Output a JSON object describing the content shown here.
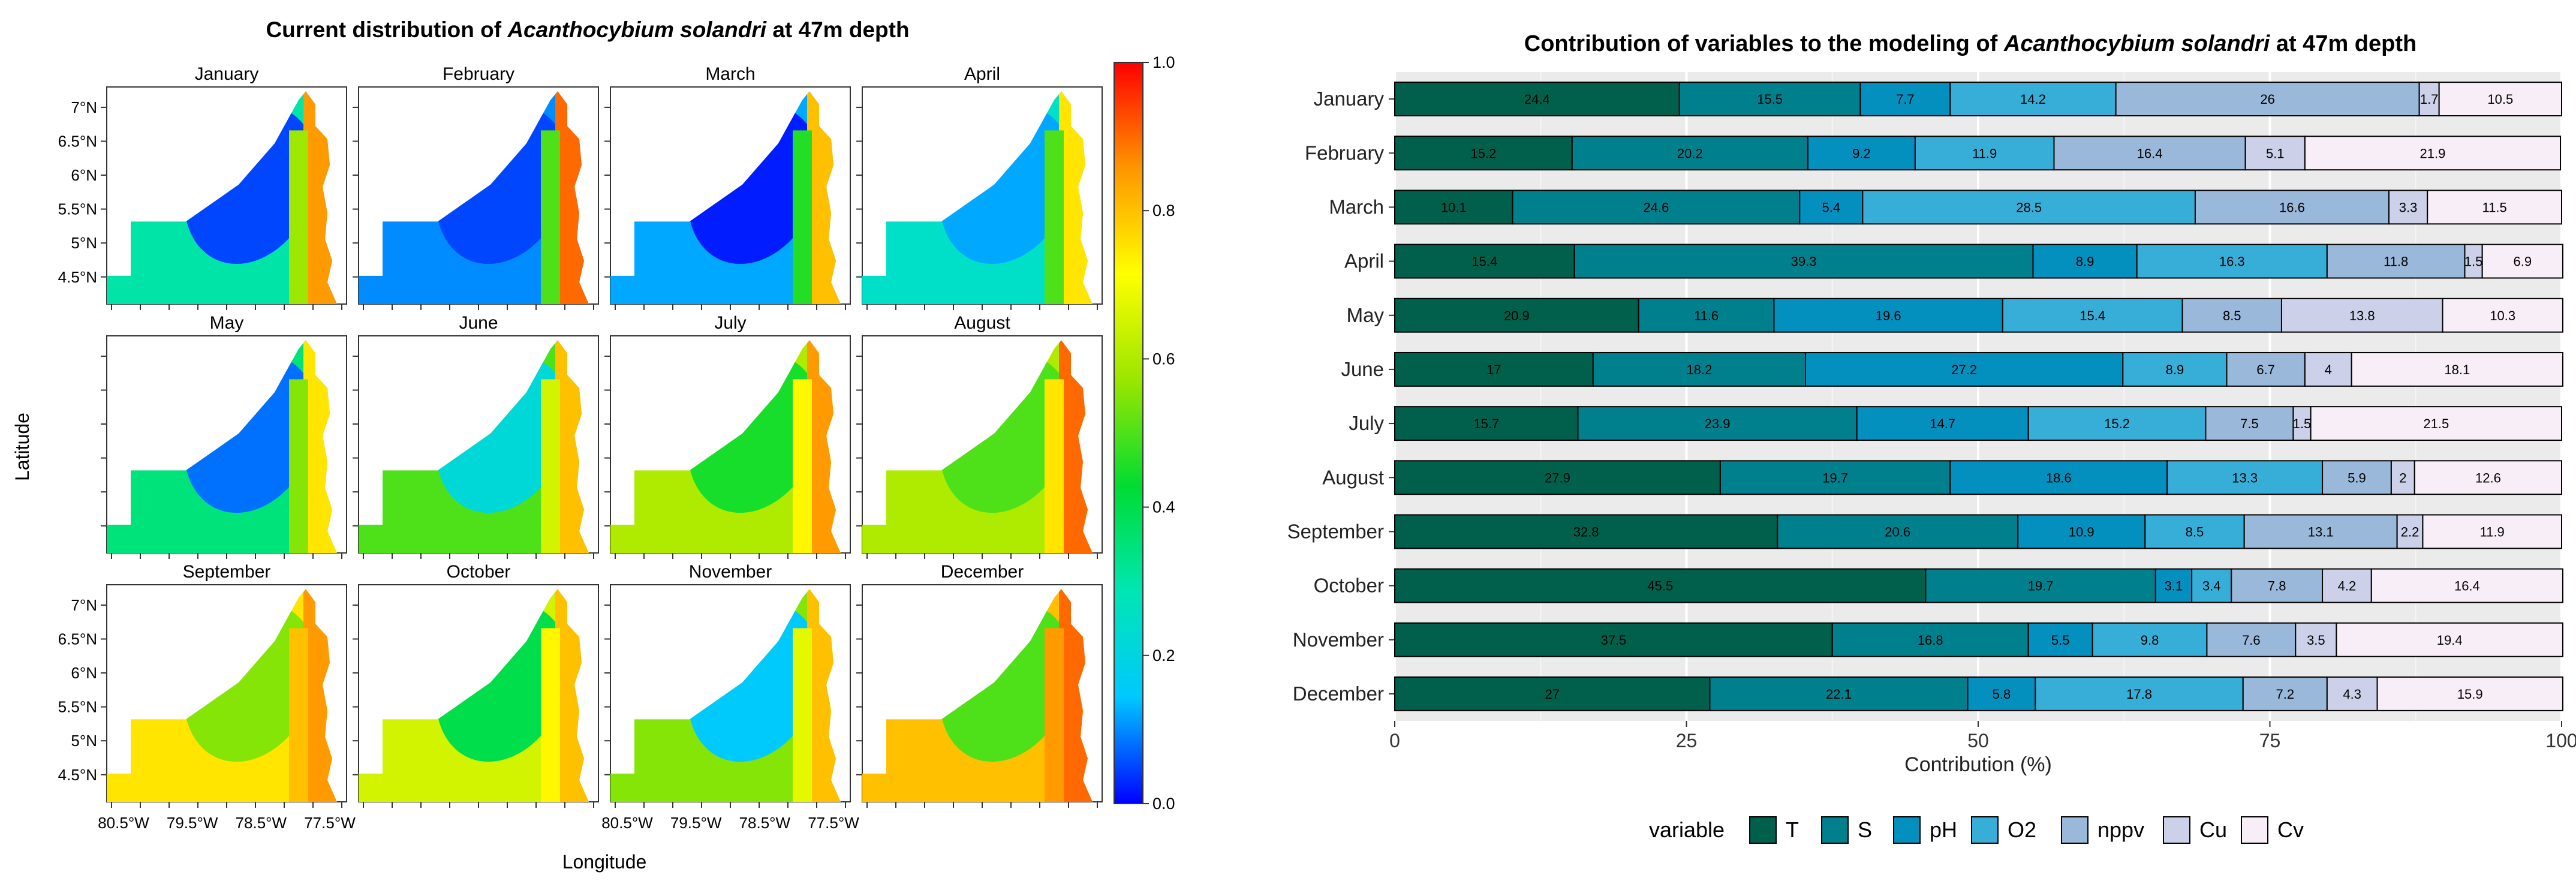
{
  "chart_data": [
    {
      "type": "heatmap",
      "title_prefix": "Current distribution of ",
      "title_species": "Acanthocybium solandri",
      "title_suffix": " at 47m depth",
      "xlabel": "Longitude",
      "ylabel": "Latitude",
      "months": [
        "January",
        "February",
        "March",
        "April",
        "May",
        "June",
        "July",
        "August",
        "September",
        "October",
        "November",
        "December"
      ],
      "x_ticks": [
        "80.5°W",
        "79.5°W",
        "78.5°W",
        "77.5°W"
      ],
      "y_ticks": [
        "7°N",
        "6.5°N",
        "6°N",
        "5.5°N",
        "5°N",
        "4.5°N"
      ],
      "y_tick_values": [
        7,
        6.5,
        6,
        5.5,
        5,
        4.5
      ],
      "lat_range": [
        4.1,
        7.3
      ],
      "lon_range": [
        -80.9,
        -77.3
      ],
      "colorbar_ticks": [
        "1.0",
        "0.8",
        "0.6",
        "0.4",
        "0.2",
        "0.0"
      ],
      "colorbar_values": [
        1.0,
        0.8,
        0.6,
        0.4,
        0.2,
        0.0
      ],
      "colorscale": [
        "#0000ff",
        "#00c8ff",
        "#00e6b4",
        "#00dc32",
        "#9be600",
        "#ffff00",
        "#ff9600",
        "#ff0000"
      ],
      "suitability": [
        {
          "sea": 0.3,
          "center": 0.05,
          "coast": 0.85
        },
        {
          "sea": 0.1,
          "center": 0.05,
          "coast": 0.9
        },
        {
          "sea": 0.12,
          "center": 0.02,
          "coast": 0.8
        },
        {
          "sea": 0.25,
          "center": 0.12,
          "coast": 0.75
        },
        {
          "sea": 0.35,
          "center": 0.08,
          "coast": 0.75
        },
        {
          "sea": 0.5,
          "center": 0.22,
          "coast": 0.8
        },
        {
          "sea": 0.6,
          "center": 0.45,
          "coast": 0.85
        },
        {
          "sea": 0.6,
          "center": 0.5,
          "coast": 0.9
        },
        {
          "sea": 0.75,
          "center": 0.55,
          "coast": 0.85
        },
        {
          "sea": 0.65,
          "center": 0.4,
          "coast": 0.8
        },
        {
          "sea": 0.55,
          "center": 0.15,
          "coast": 0.8
        },
        {
          "sea": 0.8,
          "center": 0.5,
          "coast": 0.9
        }
      ]
    },
    {
      "type": "bar",
      "orientation": "horizontal",
      "stacked": true,
      "title_prefix": "Contribution of variables to the modeling of ",
      "title_species": "Acanthocybium solandri",
      "title_suffix": " at 47m depth",
      "xlabel": "Contribution (%)",
      "ylabel": "",
      "xlim": [
        0,
        100
      ],
      "x_ticks": [
        0,
        25,
        50,
        75,
        100
      ],
      "legend_title": "variable",
      "legend_position": "bottom",
      "categories": [
        "January",
        "February",
        "March",
        "April",
        "May",
        "June",
        "July",
        "August",
        "September",
        "October",
        "November",
        "December"
      ],
      "series": [
        {
          "name": "T",
          "color": "#00604b",
          "text": "#000000",
          "values": [
            24.4,
            15.2,
            10.1,
            15.4,
            20.9,
            17,
            15.7,
            27.9,
            32.8,
            45.5,
            37.5,
            27
          ]
        },
        {
          "name": "S",
          "color": "#00808c",
          "text": "#000000",
          "values": [
            15.5,
            20.2,
            24.6,
            39.3,
            11.6,
            18.2,
            23.9,
            19.7,
            20.6,
            19.7,
            16.8,
            22.1
          ]
        },
        {
          "name": "pH",
          "color": "#0390bf",
          "text": "#000000",
          "values": [
            7.7,
            9.2,
            5.4,
            8.9,
            19.6,
            27.2,
            14.7,
            18.6,
            10.9,
            3.1,
            5.5,
            5.8
          ]
        },
        {
          "name": "O2",
          "color": "#36aed7",
          "text": "#000000",
          "values": [
            14.2,
            11.9,
            28.5,
            16.3,
            15.4,
            8.9,
            15.2,
            13.3,
            8.5,
            3.4,
            9.8,
            17.8
          ]
        },
        {
          "name": "nppv",
          "color": "#9ab8d9",
          "text": "#000000",
          "values": [
            26,
            16.4,
            16.6,
            11.8,
            8.5,
            6.7,
            7.5,
            5.9,
            13.1,
            7.8,
            7.6,
            7.2
          ]
        },
        {
          "name": "Cu",
          "color": "#ccd0e8",
          "text": "#000000",
          "values": [
            1.7,
            5.1,
            3.3,
            1.5,
            13.8,
            4,
            1.5,
            2,
            2.2,
            4.2,
            3.5,
            4.3
          ]
        },
        {
          "name": "Cv",
          "color": "#f8eef7",
          "text": "#000000",
          "values": [
            10.5,
            21.9,
            11.5,
            6.9,
            10.3,
            18.1,
            21.5,
            12.6,
            11.9,
            16.4,
            19.4,
            15.9
          ]
        }
      ]
    }
  ]
}
